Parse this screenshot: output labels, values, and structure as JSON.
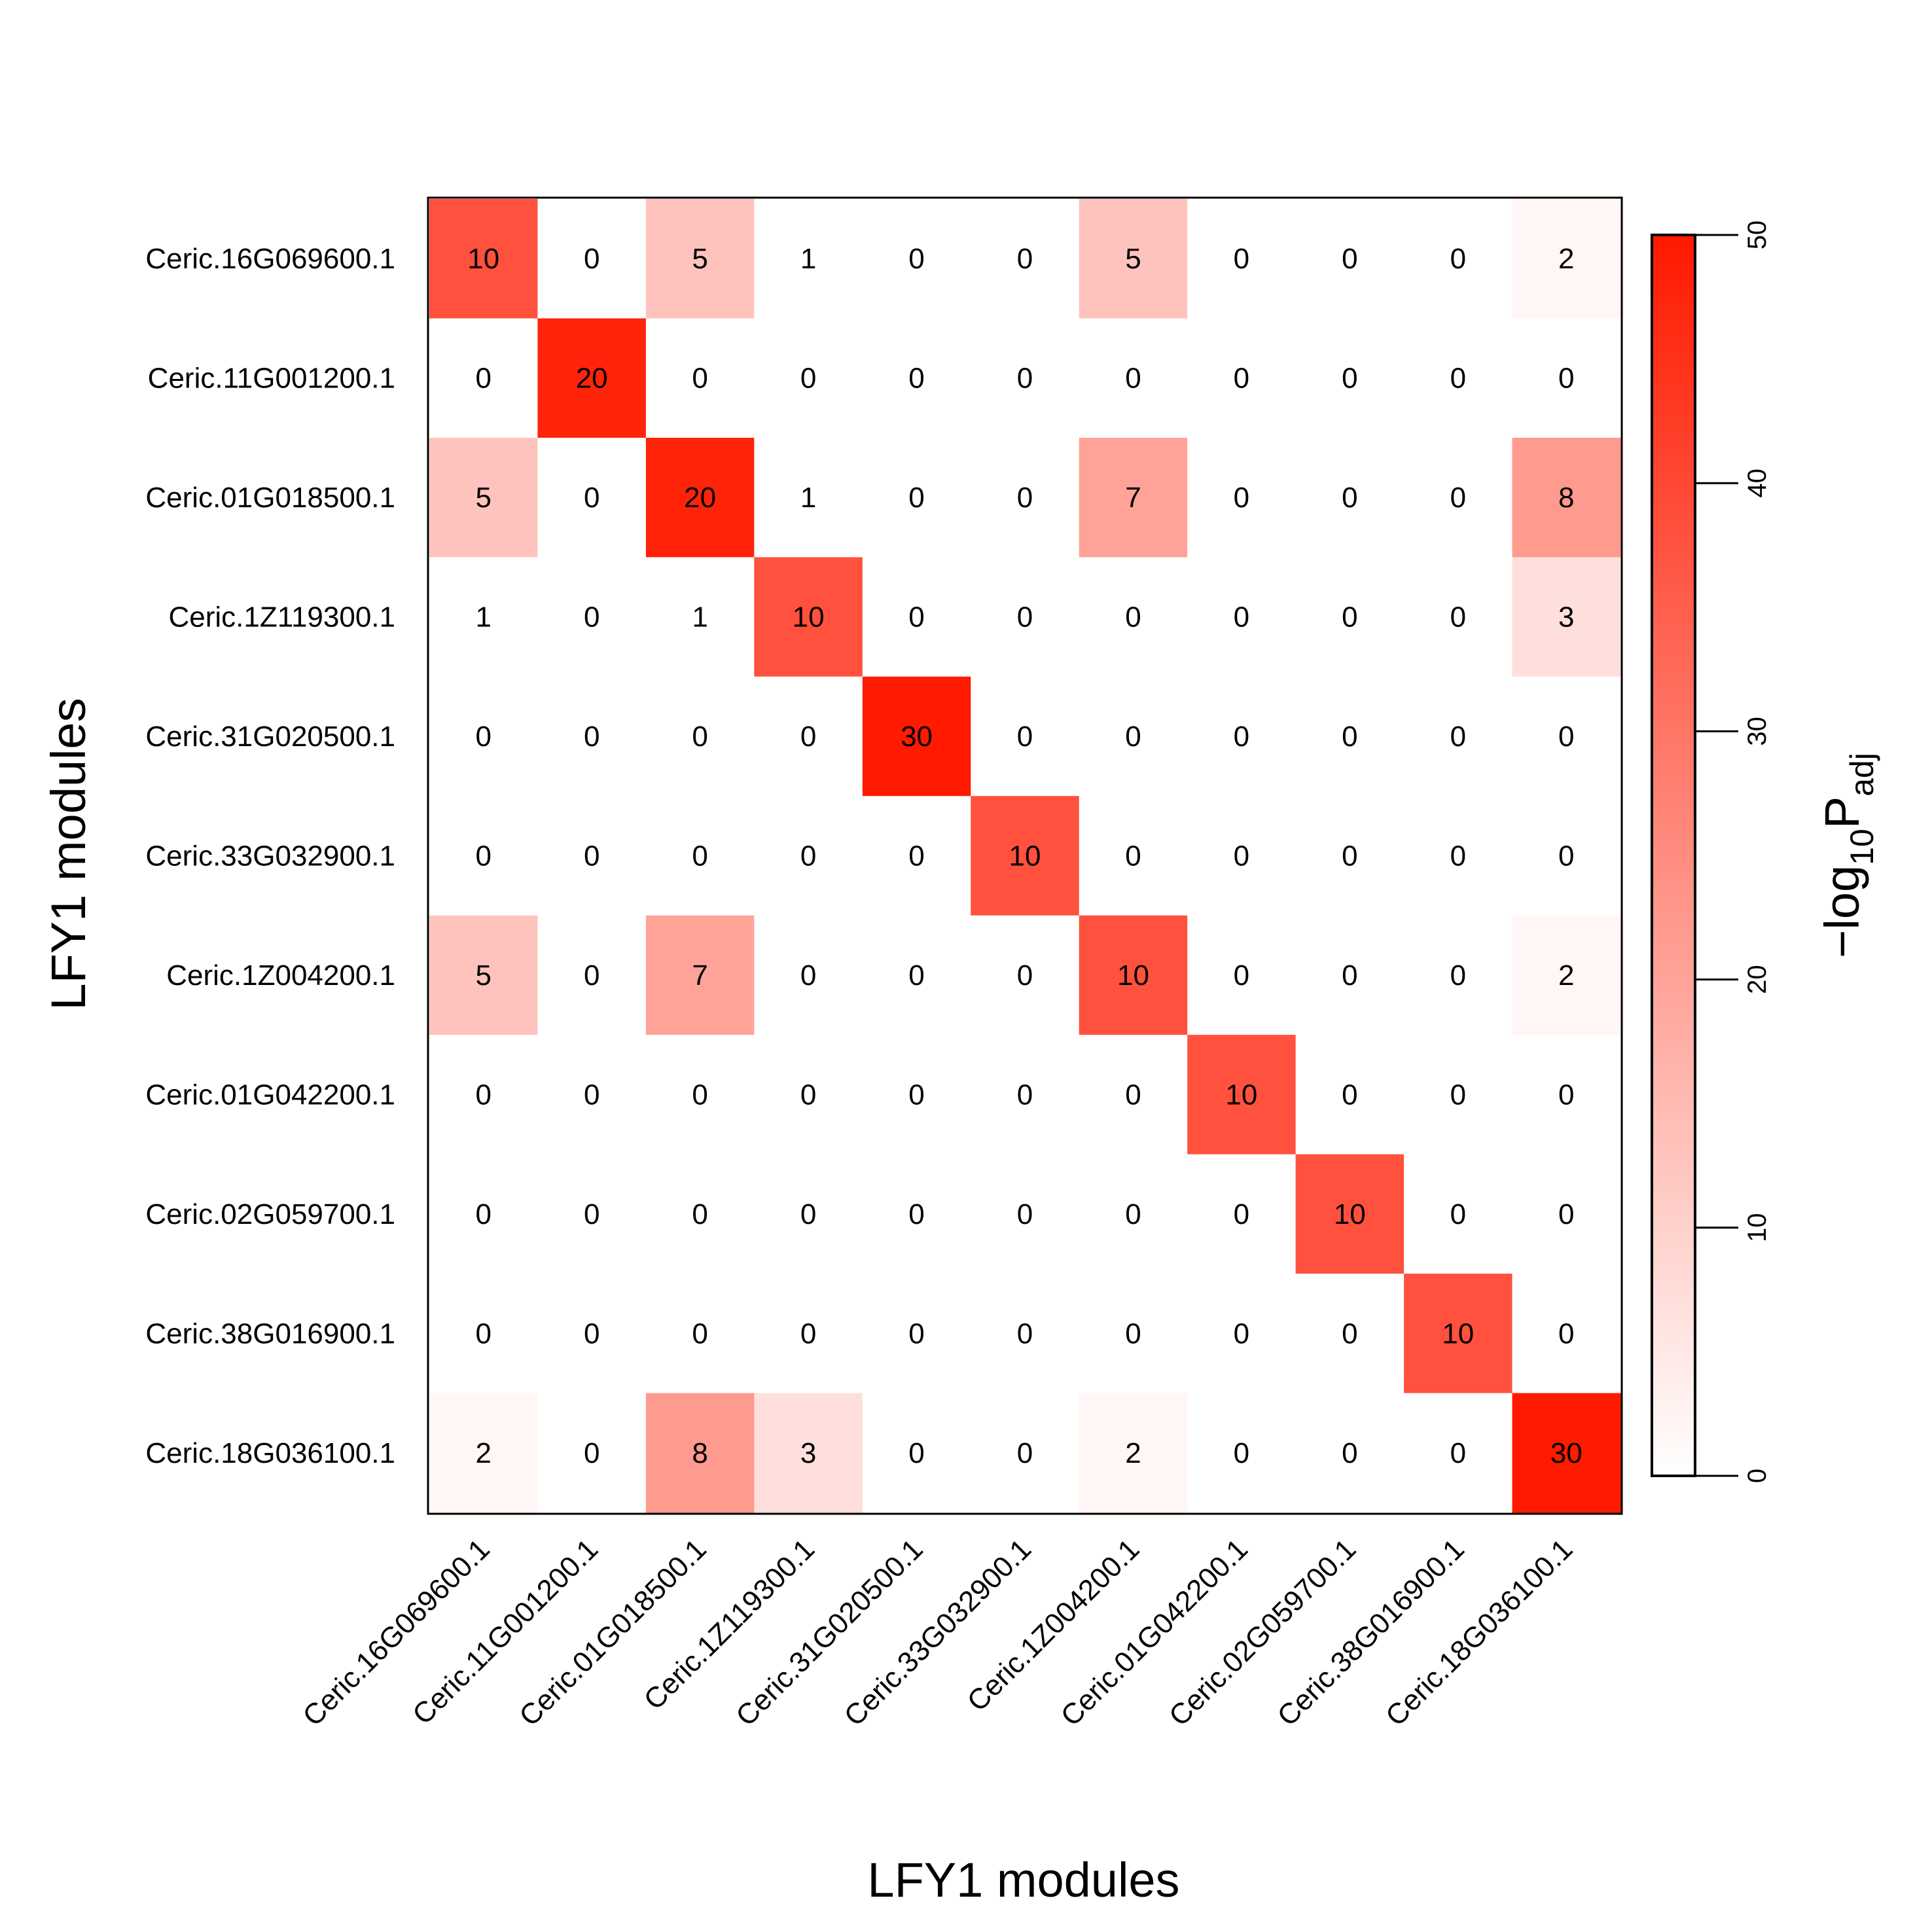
{
  "chart_data": {
    "type": "heatmap",
    "xlabel": "LFY1 modules",
    "ylabel": "LFY1 modules",
    "rows": [
      "Ceric.16G069600.1",
      "Ceric.11G001200.1",
      "Ceric.01G018500.1",
      "Ceric.1Z119300.1",
      "Ceric.31G020500.1",
      "Ceric.33G032900.1",
      "Ceric.1Z004200.1",
      "Ceric.01G042200.1",
      "Ceric.02G059700.1",
      "Ceric.38G016900.1",
      "Ceric.18G036100.1"
    ],
    "columns": [
      "Ceric.16G069600.1",
      "Ceric.11G001200.1",
      "Ceric.01G018500.1",
      "Ceric.1Z119300.1",
      "Ceric.31G020500.1",
      "Ceric.33G032900.1",
      "Ceric.1Z004200.1",
      "Ceric.01G042200.1",
      "Ceric.02G059700.1",
      "Ceric.38G016900.1",
      "Ceric.18G036100.1"
    ],
    "cell_labels": [
      [
        "10",
        "0",
        "5",
        "1",
        "0",
        "0",
        "5",
        "0",
        "0",
        "0",
        "2"
      ],
      [
        "0",
        "20",
        "0",
        "0",
        "0",
        "0",
        "0",
        "0",
        "0",
        "0",
        "0"
      ],
      [
        "5",
        "0",
        "20",
        "1",
        "0",
        "0",
        "7",
        "0",
        "0",
        "0",
        "8"
      ],
      [
        "1",
        "0",
        "1",
        "10",
        "0",
        "0",
        "0",
        "0",
        "0",
        "0",
        "3"
      ],
      [
        "0",
        "0",
        "0",
        "0",
        "30",
        "0",
        "0",
        "0",
        "0",
        "0",
        "0"
      ],
      [
        "0",
        "0",
        "0",
        "0",
        "0",
        "10",
        "0",
        "0",
        "0",
        "0",
        "0"
      ],
      [
        "5",
        "0",
        "7",
        "0",
        "0",
        "0",
        "10",
        "0",
        "0",
        "0",
        "2"
      ],
      [
        "0",
        "0",
        "0",
        "0",
        "0",
        "0",
        "0",
        "10",
        "0",
        "0",
        "0"
      ],
      [
        "0",
        "0",
        "0",
        "0",
        "0",
        "0",
        "0",
        "0",
        "10",
        "0",
        "0"
      ],
      [
        "0",
        "0",
        "0",
        "0",
        "0",
        "0",
        "0",
        "0",
        "0",
        "10",
        "0"
      ],
      [
        "2",
        "0",
        "8",
        "3",
        "0",
        "0",
        "2",
        "0",
        "0",
        "0",
        "30"
      ]
    ],
    "color_values": [
      [
        38,
        0,
        13,
        0,
        0,
        0,
        13,
        0,
        0,
        0,
        2
      ],
      [
        0,
        48,
        0,
        0,
        0,
        0,
        0,
        0,
        0,
        0,
        0
      ],
      [
        13,
        0,
        48,
        0,
        0,
        0,
        20,
        0,
        0,
        0,
        22
      ],
      [
        0,
        0,
        0,
        38,
        0,
        0,
        0,
        0,
        0,
        0,
        7
      ],
      [
        0,
        0,
        0,
        0,
        50,
        0,
        0,
        0,
        0,
        0,
        0
      ],
      [
        0,
        0,
        0,
        0,
        0,
        38,
        0,
        0,
        0,
        0,
        0
      ],
      [
        13,
        0,
        20,
        0,
        0,
        0,
        38,
        0,
        0,
        0,
        2
      ],
      [
        0,
        0,
        0,
        0,
        0,
        0,
        0,
        38,
        0,
        0,
        0
      ],
      [
        0,
        0,
        0,
        0,
        0,
        0,
        0,
        0,
        38,
        0,
        0
      ],
      [
        0,
        0,
        0,
        0,
        0,
        0,
        0,
        0,
        0,
        38,
        0
      ],
      [
        2,
        0,
        22,
        7,
        0,
        0,
        2,
        0,
        0,
        0,
        50
      ]
    ],
    "colorbar": {
      "min": 0,
      "max": 50,
      "ticks": [
        "0",
        "10",
        "20",
        "30",
        "40",
        "50"
      ],
      "title_main": "−log",
      "title_sub": "10",
      "title_p": "P",
      "title_sub2": "adj",
      "color_low": "#ffffff",
      "color_high": "#ff1a00"
    },
    "grid": false
  }
}
